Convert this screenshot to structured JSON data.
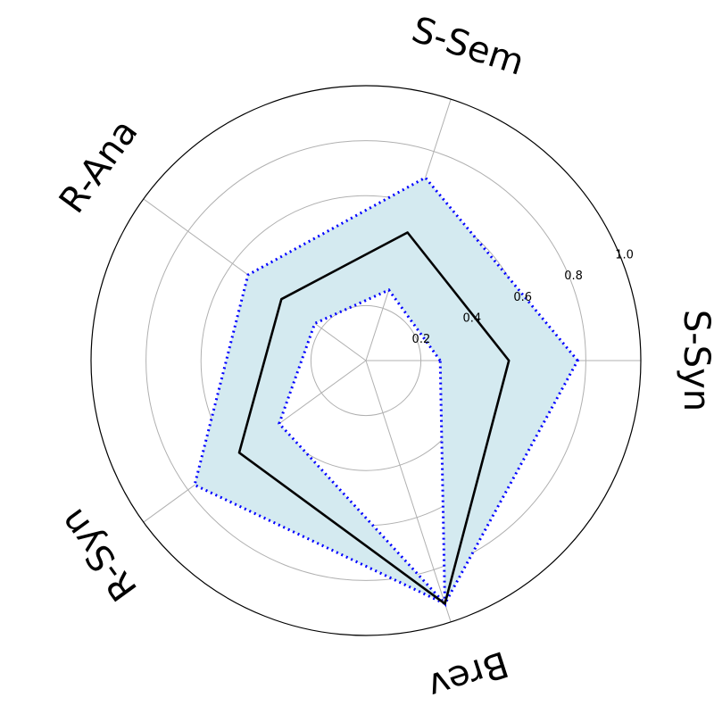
{
  "chart_data": {
    "type": "radar",
    "axes": [
      "S-Syn",
      "S-Sem",
      "R-Ana",
      "R-Syn",
      "Brev"
    ],
    "rlim": [
      0,
      1.0
    ],
    "radial_ticks": [
      "0.2",
      "0.4",
      "0.6",
      "0.8",
      "1.0"
    ],
    "radial_tick_values": [
      0.2,
      0.4,
      0.6,
      0.8,
      1.0
    ],
    "grid": true,
    "series": [
      {
        "role": "upper",
        "values": [
          0.77,
          0.7,
          0.53,
          0.77,
          0.93
        ]
      },
      {
        "role": "mean",
        "values": [
          0.52,
          0.49,
          0.38,
          0.57,
          0.93
        ]
      },
      {
        "role": "lower",
        "values": [
          0.27,
          0.27,
          0.23,
          0.39,
          0.93
        ]
      }
    ],
    "colors": {
      "band_fill": "#d4eaf0",
      "bound_line": "#0000ff",
      "mean_line": "#000000",
      "grid": "#b0b0b0",
      "frame": "#000000"
    }
  }
}
